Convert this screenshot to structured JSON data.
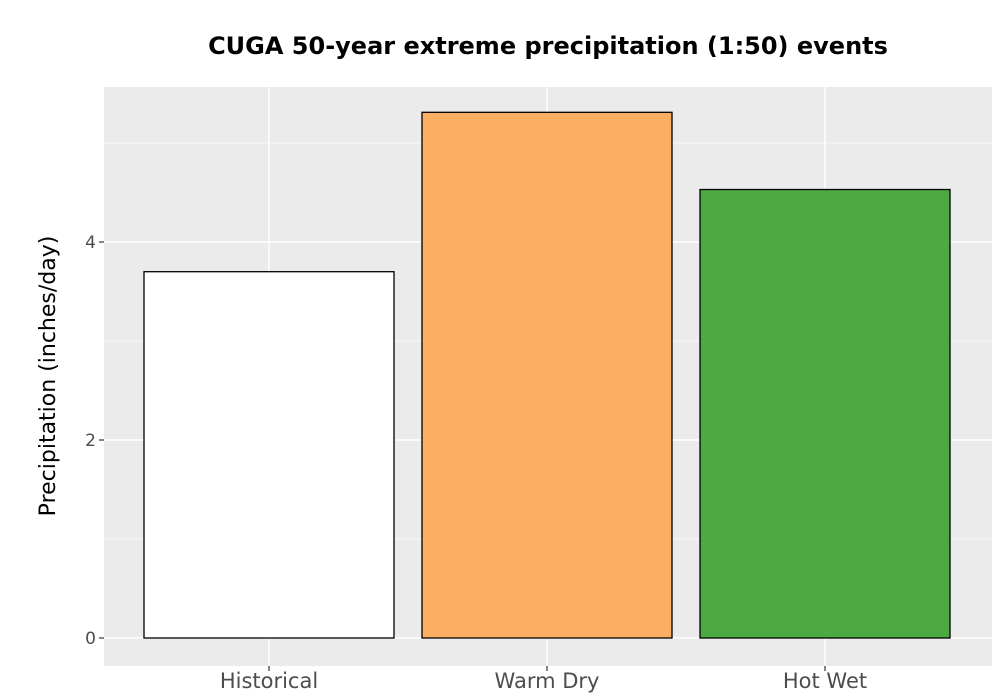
{
  "chart_data": {
    "type": "bar",
    "title": "CUGA 50-year extreme precipitation (1:50) events",
    "xlabel": "",
    "ylabel": "Precipitation (inches/day)",
    "categories": [
      "Historical",
      "Warm Dry",
      "Hot Wet"
    ],
    "values": [
      3.7,
      5.31,
      4.53
    ],
    "colors": [
      "#ffffff",
      "#fcae63",
      "#4daa42"
    ],
    "bar_outline": "#000000",
    "panel_background": "#ebebeb",
    "gridline_color": "#ffffff",
    "ylim": [
      -0.28,
      5.57
    ],
    "yticks": [
      0,
      2,
      4
    ],
    "ytick_labels": [
      "0",
      "2",
      "4"
    ],
    "grid": true,
    "legend": "none"
  }
}
